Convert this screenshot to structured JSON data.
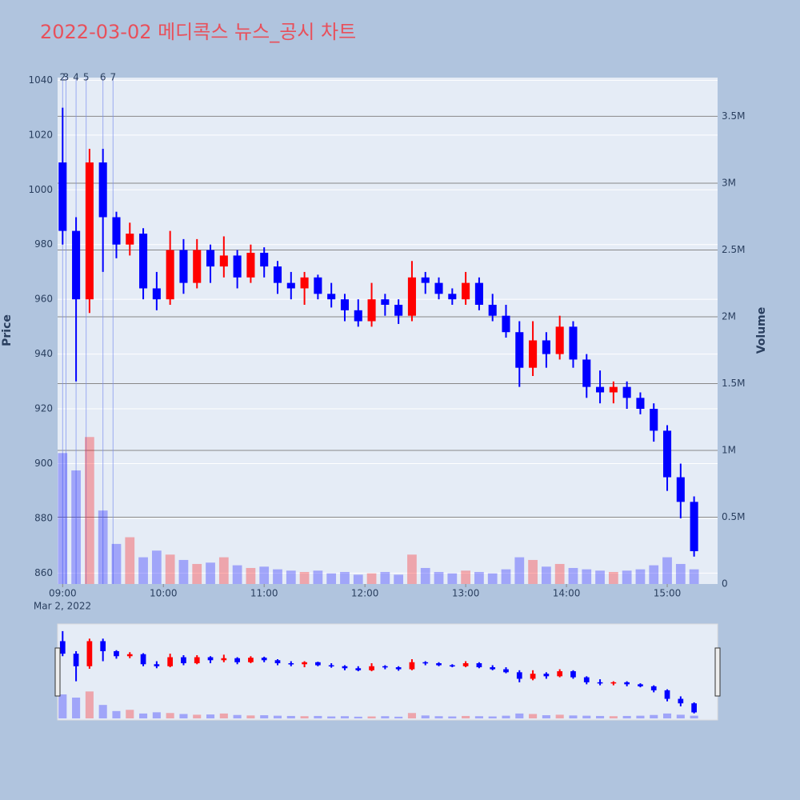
{
  "chart_data": {
    "type": "candlestick",
    "title": "2022-03-02 메디콕스 뉴스_공시 차트",
    "y_label": "Price",
    "y2_label": "Volume",
    "x_date_label": "Mar 2, 2022",
    "increasing_color": "#ff0000",
    "decreasing_color": "#0000ff",
    "x": [
      "2022-03-02 09:00",
      "2022-03-02 09:08",
      "2022-03-02 09:16",
      "2022-03-02 09:24",
      "2022-03-02 09:32",
      "2022-03-02 09:40",
      "2022-03-02 09:48",
      "2022-03-02 09:56",
      "2022-03-02 10:04",
      "2022-03-02 10:12",
      "2022-03-02 10:20",
      "2022-03-02 10:28",
      "2022-03-02 10:36",
      "2022-03-02 10:44",
      "2022-03-02 10:52",
      "2022-03-02 11:00",
      "2022-03-02 11:08",
      "2022-03-02 11:16",
      "2022-03-02 11:24",
      "2022-03-02 11:32",
      "2022-03-02 11:40",
      "2022-03-02 11:48",
      "2022-03-02 11:56",
      "2022-03-02 12:04",
      "2022-03-02 12:12",
      "2022-03-02 12:20",
      "2022-03-02 12:28",
      "2022-03-02 12:36",
      "2022-03-02 12:44",
      "2022-03-02 12:52",
      "2022-03-02 13:00",
      "2022-03-02 13:08",
      "2022-03-02 13:16",
      "2022-03-02 13:24",
      "2022-03-02 13:32",
      "2022-03-02 13:40",
      "2022-03-02 13:48",
      "2022-03-02 13:56",
      "2022-03-02 14:04",
      "2022-03-02 14:12",
      "2022-03-02 14:20",
      "2022-03-02 14:28",
      "2022-03-02 14:36",
      "2022-03-02 14:44",
      "2022-03-02 14:52",
      "2022-03-02 15:00",
      "2022-03-02 15:08",
      "2022-03-02 15:16"
    ],
    "open": [
      1010,
      985,
      960,
      1010,
      990,
      980,
      984,
      964,
      960,
      978,
      966,
      978,
      972,
      976,
      968,
      977,
      972,
      966,
      964,
      968,
      962,
      960,
      956,
      952,
      960,
      958,
      954,
      968,
      966,
      962,
      960,
      966,
      958,
      954,
      948,
      935,
      945,
      940,
      950,
      938,
      928,
      926,
      928,
      924,
      920,
      912,
      895,
      886
    ],
    "high": [
      1030,
      990,
      1015,
      1015,
      992,
      988,
      986,
      970,
      985,
      982,
      982,
      980,
      983,
      978,
      980,
      979,
      974,
      970,
      970,
      969,
      966,
      962,
      960,
      966,
      962,
      960,
      974,
      970,
      968,
      964,
      970,
      968,
      962,
      958,
      952,
      952,
      948,
      954,
      952,
      940,
      934,
      930,
      930,
      926,
      922,
      914,
      900,
      888
    ],
    "low": [
      980,
      930,
      955,
      970,
      975,
      976,
      960,
      956,
      958,
      962,
      964,
      966,
      968,
      964,
      966,
      968,
      962,
      960,
      958,
      960,
      957,
      952,
      950,
      950,
      954,
      951,
      952,
      962,
      960,
      958,
      958,
      956,
      952,
      946,
      928,
      932,
      935,
      938,
      935,
      924,
      922,
      922,
      920,
      918,
      908,
      890,
      880,
      866
    ],
    "close": [
      985,
      960,
      1010,
      990,
      980,
      984,
      964,
      960,
      978,
      966,
      978,
      972,
      976,
      968,
      977,
      972,
      966,
      964,
      968,
      962,
      960,
      956,
      952,
      960,
      958,
      954,
      968,
      966,
      962,
      960,
      966,
      958,
      954,
      948,
      935,
      945,
      940,
      950,
      938,
      928,
      926,
      928,
      924,
      920,
      912,
      895,
      886,
      868
    ],
    "volume": [
      980000,
      850000,
      1100000,
      550000,
      300000,
      350000,
      200000,
      250000,
      220000,
      180000,
      150000,
      160000,
      200000,
      140000,
      120000,
      130000,
      110000,
      100000,
      90000,
      100000,
      80000,
      90000,
      70000,
      80000,
      90000,
      70000,
      220000,
      120000,
      90000,
      80000,
      100000,
      90000,
      80000,
      110000,
      200000,
      180000,
      130000,
      150000,
      120000,
      110000,
      100000,
      90000,
      100000,
      110000,
      140000,
      200000,
      150000,
      110000
    ],
    "xlim": [
      "2022-03-02 08:57",
      "2022-03-02 15:30"
    ],
    "xticks": [
      {
        "value": "2022-03-02 09:00",
        "label": "09:00"
      },
      {
        "value": "2022-03-02 10:00",
        "label": "10:00"
      },
      {
        "value": "2022-03-02 11:00",
        "label": "11:00"
      },
      {
        "value": "2022-03-02 12:00",
        "label": "12:00"
      },
      {
        "value": "2022-03-02 13:00",
        "label": "13:00"
      },
      {
        "value": "2022-03-02 14:00",
        "label": "14:00"
      },
      {
        "value": "2022-03-02 15:00",
        "label": "15:00"
      }
    ],
    "ylim": [
      856,
      1041
    ],
    "yticks": [
      860,
      880,
      900,
      920,
      940,
      960,
      980,
      1000,
      1020,
      1040
    ],
    "y2lim": [
      0,
      3790000
    ],
    "y2ticks": [
      0,
      {
        "value": 500000,
        "label": "0.5M"
      },
      {
        "value": 1000000,
        "label": "1M"
      },
      {
        "value": 1500000,
        "label": "1.5M"
      },
      {
        "value": 2000000,
        "label": "2M"
      },
      {
        "value": 2500000,
        "label": "2.5M"
      },
      {
        "value": 3000000,
        "label": "3M"
      },
      {
        "value": 3500000,
        "label": "3.5M"
      }
    ],
    "annotations": [
      {
        "x": "2022-03-02 09:00",
        "text": "2"
      },
      {
        "x": "2022-03-02 09:02",
        "text": "3"
      },
      {
        "x": "2022-03-02 09:08",
        "text": "4"
      },
      {
        "x": "2022-03-02 09:14",
        "text": "5"
      },
      {
        "x": "2022-03-02 09:24",
        "text": "6"
      },
      {
        "x": "2022-03-02 09:30",
        "text": "7"
      }
    ],
    "grid": true,
    "rangeslider": true
  }
}
